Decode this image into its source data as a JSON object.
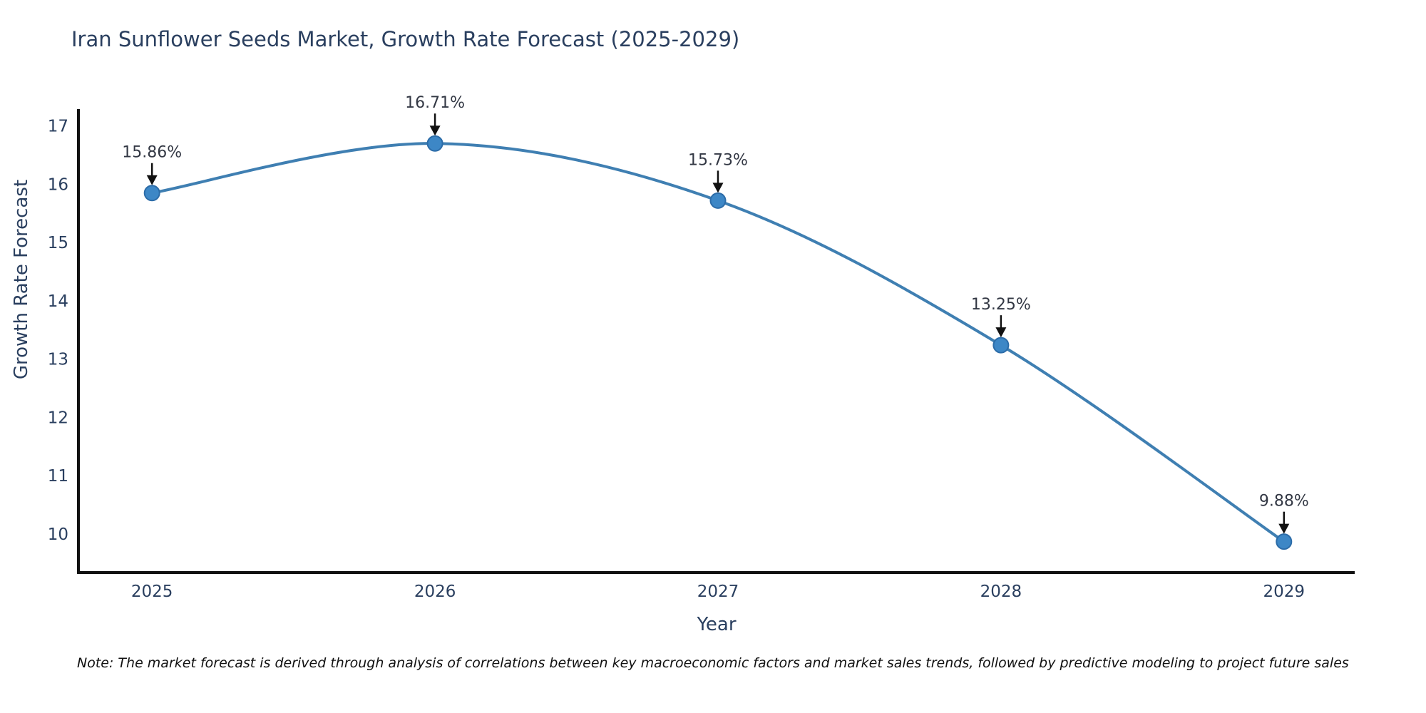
{
  "chart": {
    "title": "Iran Sunflower Seeds Market, Growth Rate Forecast (2025-2029)",
    "xlabel": "Year",
    "ylabel": "Growth Rate Forecast",
    "note": "Note: The market forecast is derived through analysis of correlations between key macroeconomic factors and market sales trends, followed by predictive modeling to project future sales"
  },
  "chart_data": {
    "type": "line",
    "title": "Iran Sunflower Seeds Market, Growth Rate Forecast (2025-2029)",
    "xlabel": "Year",
    "ylabel": "Growth Rate Forecast",
    "x": [
      2025,
      2026,
      2027,
      2028,
      2029
    ],
    "values": [
      15.86,
      16.71,
      15.73,
      13.25,
      9.88
    ],
    "point_labels": [
      "15.86%",
      "16.71%",
      "15.73%",
      "13.25%",
      "9.88%"
    ],
    "yticks": [
      10,
      11,
      12,
      13,
      14,
      15,
      16,
      17
    ],
    "ylim": [
      9.35,
      17.3
    ],
    "xlim": [
      2024.74,
      2029.25
    ],
    "grid": false,
    "legend_position": "none",
    "line_shape": "spline",
    "annotation_style": "text-with-down-arrow",
    "colors": {
      "line": "#3f7fb2",
      "marker_fill": "#3d87c6",
      "marker_edge": "#2c6ca8",
      "axis": "#111111",
      "tick_text": "#2a3f5f",
      "annotation_text": "#333844",
      "arrow": "#111111",
      "background": "#ffffff"
    }
  }
}
